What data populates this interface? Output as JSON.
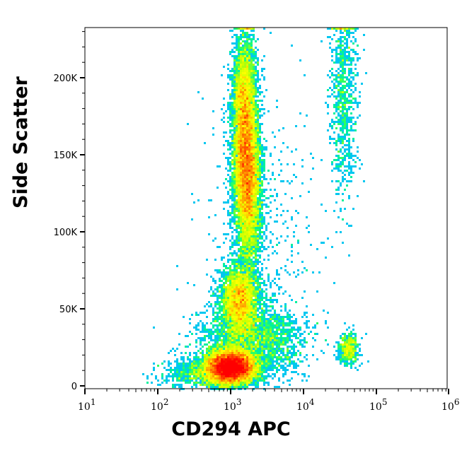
{
  "chart_data": {
    "type": "heatmap",
    "subtype": "flow-cytometry density dot plot",
    "xlabel": "CD294 APC",
    "ylabel": "Side Scatter",
    "x_scale": "log",
    "xlim": [
      10,
      1000000
    ],
    "ylim": [
      0,
      232000
    ],
    "x_ticks": [
      {
        "value": 10,
        "base": "10",
        "exp": "1"
      },
      {
        "value": 100,
        "base": "10",
        "exp": "2"
      },
      {
        "value": 1000,
        "base": "10",
        "exp": "3"
      },
      {
        "value": 10000,
        "base": "10",
        "exp": "4"
      },
      {
        "value": 100000,
        "base": "10",
        "exp": "5"
      },
      {
        "value": 1000000,
        "base": "10",
        "exp": "6"
      }
    ],
    "y_ticks": [
      {
        "value": 0,
        "label": "0"
      },
      {
        "value": 50000,
        "label": "50K"
      },
      {
        "value": 100000,
        "label": "100K"
      },
      {
        "value": 150000,
        "label": "150K"
      },
      {
        "value": 200000,
        "label": "200K"
      }
    ],
    "grid": false,
    "colormap": [
      "#0000ff",
      "#00c0ff",
      "#00ff80",
      "#c0ff00",
      "#ffff00",
      "#ff8000",
      "#ff0000"
    ],
    "populations": [
      {
        "x_center": 1000,
        "y_center": 12000,
        "density": "highest"
      },
      {
        "x_center": 1600,
        "y_center": 140000,
        "density": "high"
      },
      {
        "x_center": 1400,
        "y_center": 55000,
        "density": "medium"
      },
      {
        "x_center": 35000,
        "y_center": 190000,
        "density": "low"
      },
      {
        "x_center": 40000,
        "y_center": 22000,
        "density": "low"
      }
    ]
  },
  "labels": {
    "x": "CD294 APC",
    "y": "Side Scatter"
  }
}
